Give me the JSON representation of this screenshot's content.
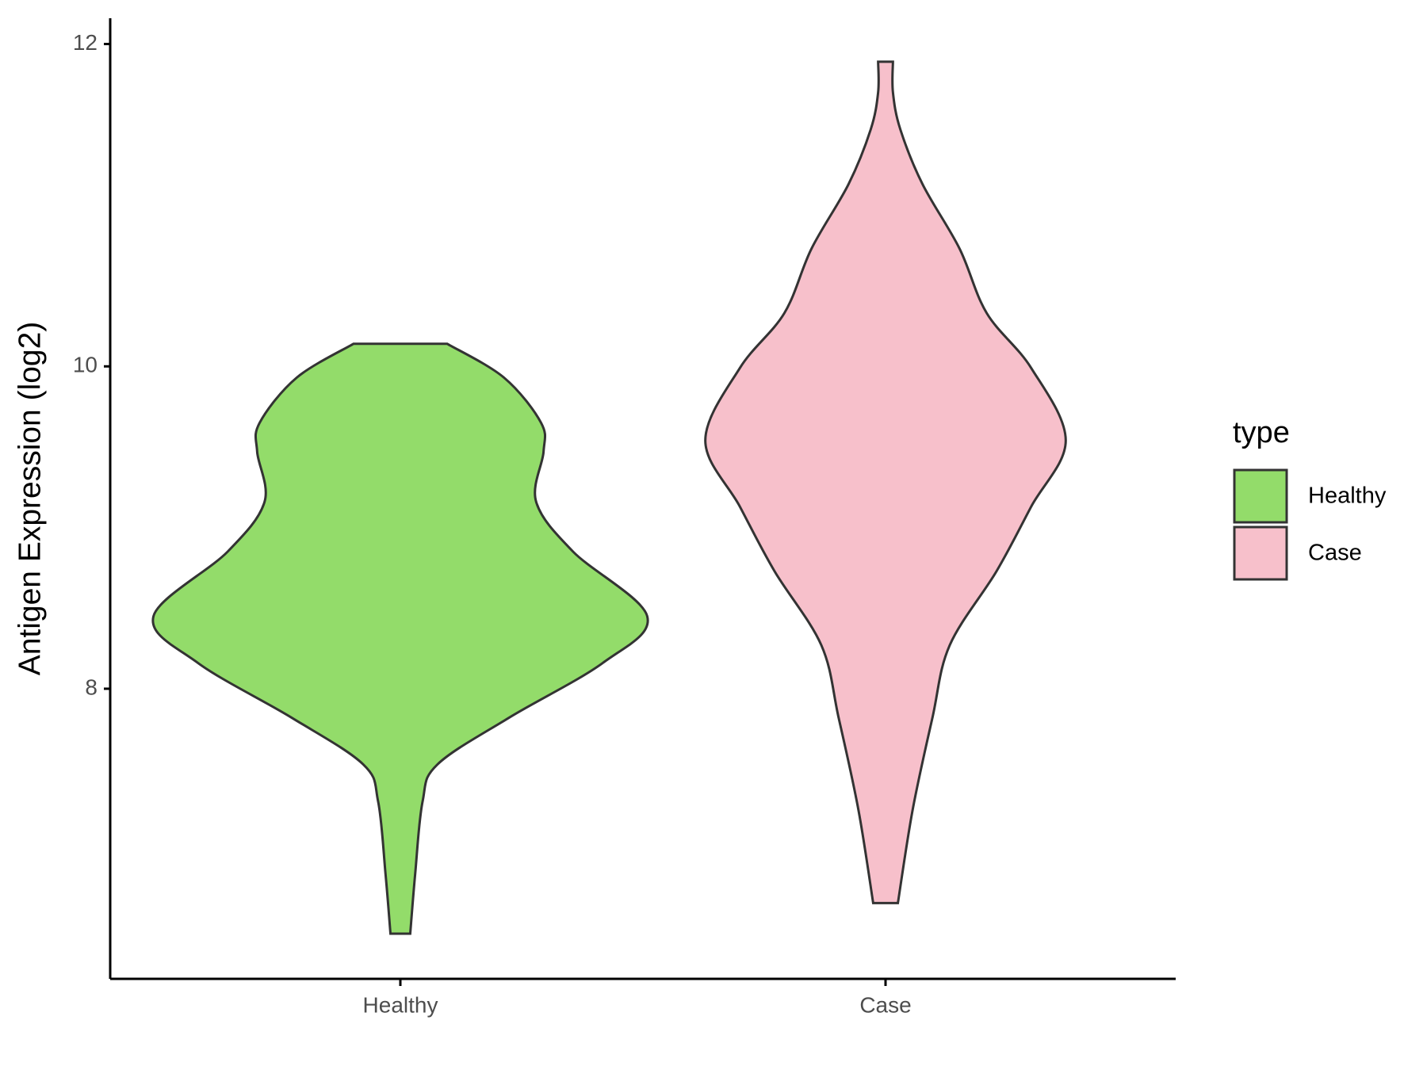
{
  "chart_data": {
    "type": "violin",
    "y_label": "Antigen Expression (log2)",
    "categories": [
      "Healthy",
      "Case"
    ],
    "ylim": [
      6.2,
      12.16
    ],
    "yticks": [
      8,
      10,
      12
    ],
    "legend_title": "type",
    "legend_position": "right",
    "series": [
      {
        "name": "Healthy",
        "color": "#93dc6a",
        "y": [
          10.14,
          9.93,
          9.65,
          9.47,
          9.16,
          8.85,
          8.45,
          8.16,
          7.82,
          7.53,
          7.3,
          6.85,
          6.48
        ],
        "density": [
          0.19,
          0.42,
          0.57,
          0.58,
          0.55,
          0.7,
          1.0,
          0.82,
          0.44,
          0.15,
          0.09,
          0.06,
          0.04
        ]
      },
      {
        "name": "Case",
        "color": "#f7c0cb",
        "y": [
          11.89,
          11.7,
          11.47,
          11.13,
          10.73,
          10.33,
          9.99,
          9.54,
          9.13,
          8.73,
          8.27,
          7.82,
          7.25,
          6.67
        ],
        "density": [
          0.03,
          0.03,
          0.06,
          0.15,
          0.3,
          0.41,
          0.59,
          0.73,
          0.59,
          0.45,
          0.26,
          0.19,
          0.11,
          0.05
        ]
      }
    ]
  }
}
